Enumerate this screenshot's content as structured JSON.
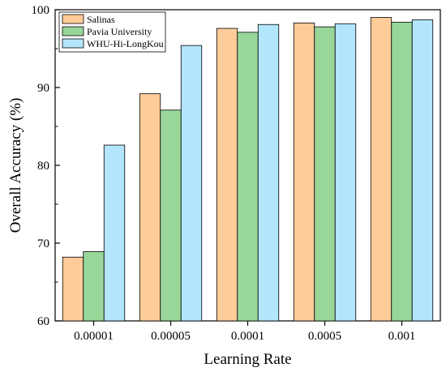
{
  "chart_data": {
    "type": "bar",
    "title": "",
    "xlabel": "Learning Rate",
    "ylabel": "Overall Accuracy (%)",
    "categories": [
      "0.00001",
      "0.00005",
      "0.0001",
      "0.0005",
      "0.001"
    ],
    "ylim": [
      60,
      100
    ],
    "yticks": [
      60,
      70,
      80,
      90,
      100
    ],
    "grid": false,
    "legend_position": "top-left",
    "series": [
      {
        "name": "Salinas",
        "color": "#FFCC99",
        "values": [
          68.2,
          89.2,
          97.6,
          98.3,
          99.0
        ]
      },
      {
        "name": "Pavia University",
        "color": "#99D699",
        "values": [
          68.9,
          87.1,
          97.1,
          97.8,
          98.4
        ]
      },
      {
        "name": "WHU-Hi-LongKou",
        "color": "#B3E5FC",
        "values": [
          82.6,
          95.4,
          98.1,
          98.2,
          98.7
        ]
      }
    ]
  }
}
